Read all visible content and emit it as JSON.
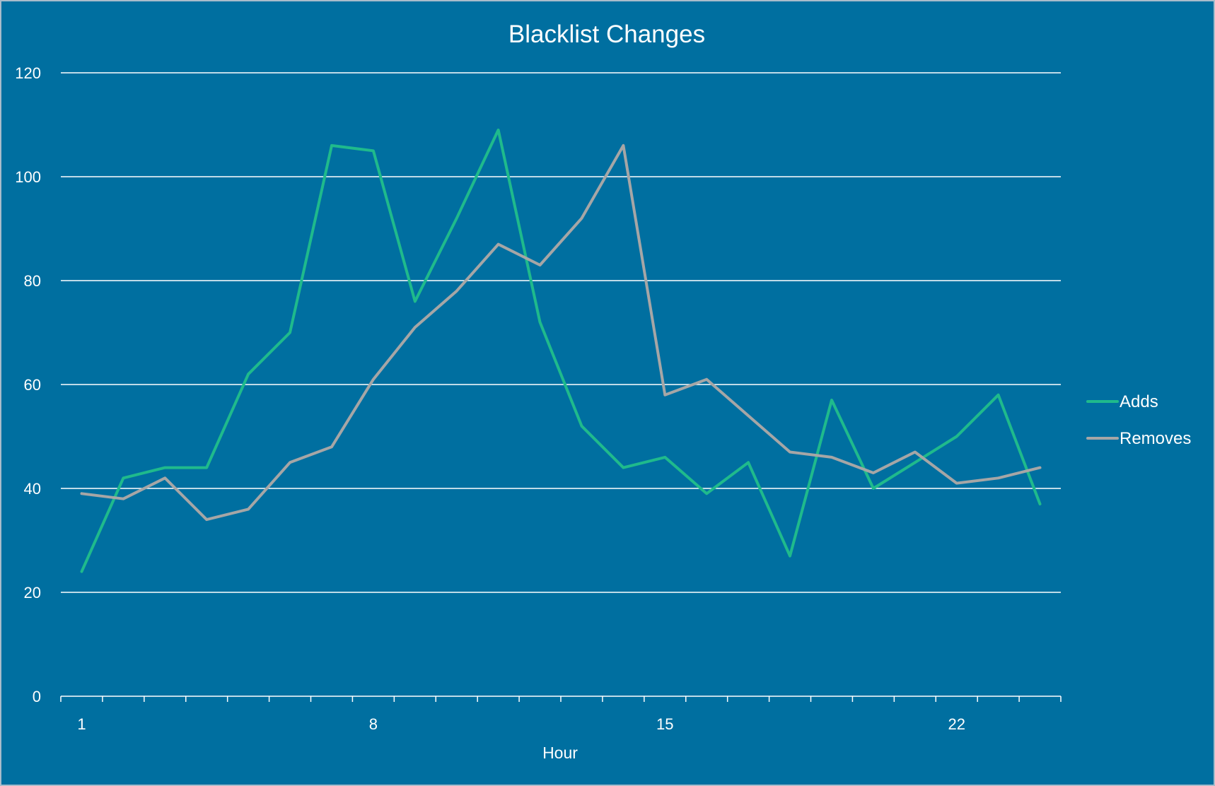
{
  "chart_data": {
    "type": "line",
    "title": "Blacklist Changes",
    "xlabel": "Hour",
    "ylabel": "",
    "x": [
      1,
      2,
      3,
      4,
      5,
      6,
      7,
      8,
      9,
      10,
      11,
      12,
      13,
      14,
      15,
      16,
      17,
      18,
      19,
      20,
      21,
      22,
      23,
      24
    ],
    "x_tick_labels": [
      "1",
      "8",
      "15",
      "22"
    ],
    "x_tick_label_positions": [
      1,
      8,
      15,
      22
    ],
    "ylim": [
      0,
      120
    ],
    "y_ticks": [
      0,
      20,
      40,
      60,
      80,
      100,
      120
    ],
    "grid": true,
    "legend_position": "right",
    "series": [
      {
        "name": "Adds",
        "color": "#1fba8c",
        "values": [
          24,
          42,
          44,
          44,
          62,
          70,
          106,
          105,
          76,
          92,
          109,
          72,
          52,
          44,
          46,
          39,
          45,
          27,
          57,
          40,
          45,
          50,
          58,
          37
        ]
      },
      {
        "name": "Removes",
        "color": "#a6a6a6",
        "values": [
          39,
          38,
          42,
          34,
          36,
          45,
          48,
          61,
          71,
          78,
          87,
          83,
          92,
          106,
          58,
          61,
          54,
          47,
          46,
          43,
          47,
          41,
          42,
          44
        ]
      }
    ]
  }
}
